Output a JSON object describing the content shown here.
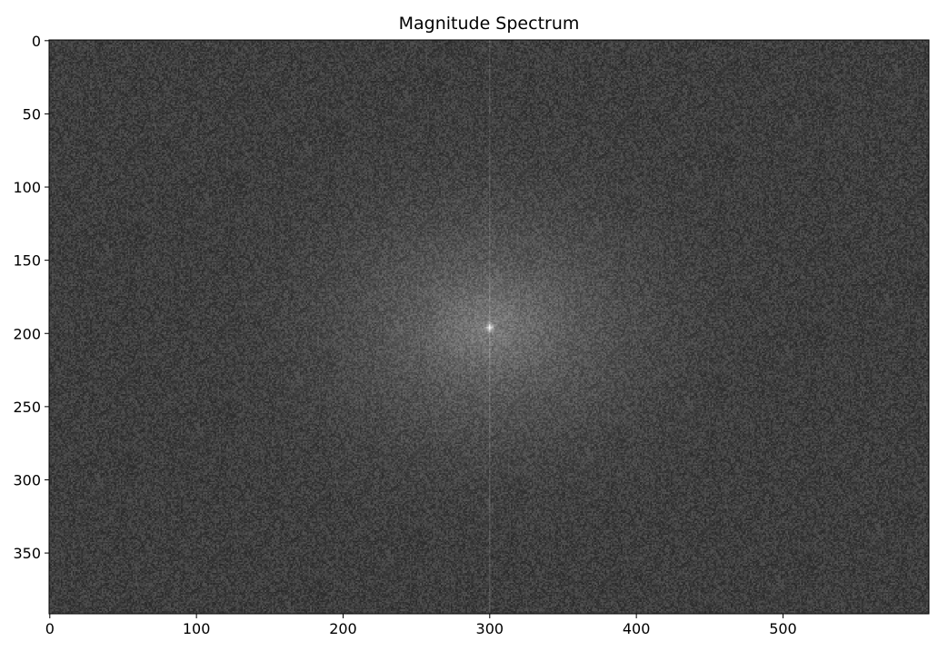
{
  "chart_data": {
    "type": "heatmap",
    "title": "Magnitude Spectrum",
    "xlabel": "",
    "ylabel": "",
    "colormap": "gray",
    "image_shape": {
      "rows": 392,
      "cols": 600
    },
    "xlim": [
      -0.5,
      599.5
    ],
    "ylim": [
      391.5,
      -0.5
    ],
    "x_ticks": [
      0,
      100,
      200,
      300,
      400,
      500
    ],
    "x_tick_labels": [
      "0",
      "100",
      "200",
      "300",
      "400",
      "500"
    ],
    "y_ticks": [
      0,
      50,
      100,
      150,
      200,
      250,
      300,
      350
    ],
    "y_tick_labels": [
      "0",
      "50",
      "100",
      "150",
      "200",
      "250",
      "300",
      "350"
    ],
    "center_peak": {
      "x": 300,
      "y": 196
    },
    "vertical_line_x": 300,
    "grid": false
  },
  "colors": {
    "background_gray": "#4a4a4a",
    "peak": "#ffffff",
    "axes": "#000000"
  }
}
